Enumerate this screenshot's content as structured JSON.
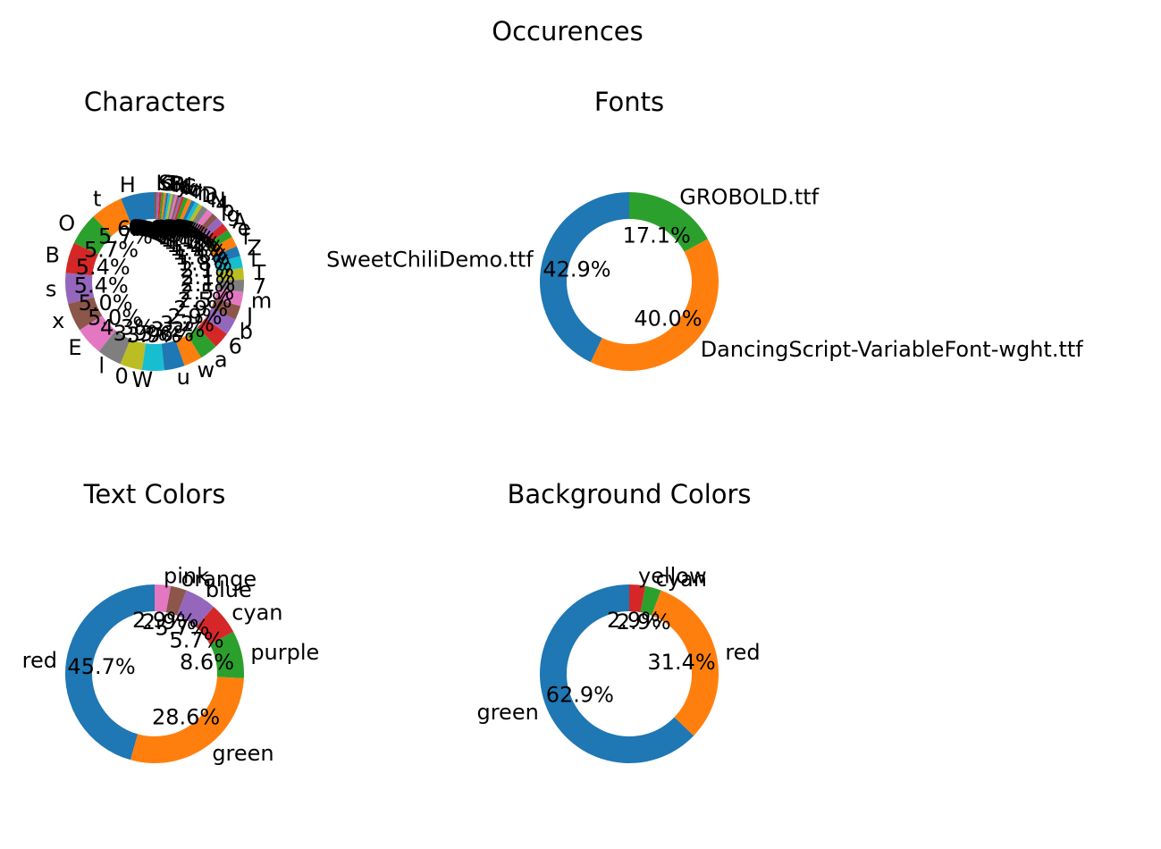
{
  "suptitle": "Occurences",
  "palette": [
    "#1f77b4",
    "#ff7f0e",
    "#2ca02c",
    "#d62728",
    "#9467bd",
    "#8c564b",
    "#e377c2",
    "#7f7f7f",
    "#bcbd22",
    "#17becf"
  ],
  "chart_data": [
    {
      "type": "pie",
      "style": "donut",
      "title": "Characters",
      "categories": [
        "H",
        "t",
        "O",
        "B",
        "s",
        "x",
        "E",
        "l",
        "0",
        "W",
        "u",
        "w",
        "a",
        "6",
        "b",
        "J",
        "m",
        "7",
        "T",
        "l",
        "Z",
        "f",
        "e",
        "A",
        "g",
        "p",
        "4",
        "N",
        "c",
        "D",
        "h",
        "r",
        "o",
        "v",
        "k",
        "C",
        "d",
        "y",
        "i",
        "R",
        "8",
        "1",
        "2",
        "n",
        "S",
        "K"
      ],
      "values": [
        6.0,
        5.7,
        5.7,
        5.4,
        5.4,
        5.0,
        5.0,
        4.3,
        3.9,
        3.9,
        3.6,
        3.2,
        3.2,
        2.9,
        2.9,
        2.5,
        2.5,
        2.1,
        2.1,
        2.1,
        1.8,
        1.8,
        1.4,
        1.4,
        1.4,
        1.1,
        1.1,
        1.1,
        0.7,
        0.7,
        0.7,
        0.7,
        0.7,
        0.4,
        0.4,
        0.4,
        0.4,
        0.4,
        0.4,
        0.4,
        0.4,
        0.4,
        0.4,
        0.4,
        0.4,
        0.4
      ],
      "percent_labels": [
        "6.0%",
        "5.7%",
        "5.7%",
        "5.4%",
        "5.4%",
        "5.0%",
        "5.0%",
        "4.3%",
        "3.9%",
        "3.9%",
        "3.6%",
        "3.2%",
        "3.2%",
        "2.9%",
        "2.9%",
        "2.5%",
        "2.5%",
        "2.1%",
        "2.1%",
        "2.1%",
        "1.8%",
        "1.8%",
        "1.4%",
        "1.4%",
        "1.4%",
        "1.1%",
        "1.1%",
        "1.1%",
        "0.7%",
        "0.7%",
        "0.7%",
        "0.7%",
        "0.7%",
        "0.4%",
        "0.4%",
        "0.4%",
        "0.4%",
        "0.4%",
        "0.4%",
        "0.4%",
        "0.4%",
        "0.4%",
        "0.4%",
        "0.4%",
        "0.4%",
        "0.4%"
      ]
    },
    {
      "type": "pie",
      "style": "donut",
      "title": "Fonts",
      "categories": [
        "SweetChiliDemo.ttf",
        "DancingScript-VariableFont-wght.ttf",
        "GROBOLD.ttf"
      ],
      "values": [
        42.9,
        40.0,
        17.1
      ],
      "percent_labels": [
        "42.9%",
        "40.0%",
        "17.1%"
      ]
    },
    {
      "type": "pie",
      "style": "donut",
      "title": "Text Colors",
      "categories": [
        "red",
        "green",
        "purple",
        "cyan",
        "blue",
        "orange",
        "pink"
      ],
      "values": [
        45.7,
        28.6,
        8.6,
        5.7,
        5.7,
        2.9,
        2.9
      ],
      "percent_labels": [
        "45.7%",
        "28.6%",
        "8.6%",
        "5.7%",
        "5.7%",
        "2.9%",
        "2.9%"
      ]
    },
    {
      "type": "pie",
      "style": "donut",
      "title": "Background Colors",
      "categories": [
        "green",
        "red",
        "cyan",
        "yellow"
      ],
      "values": [
        62.9,
        31.4,
        2.9,
        2.9
      ],
      "percent_labels": [
        "62.9%",
        "31.4%",
        "2.9%",
        "2.9%"
      ]
    }
  ]
}
